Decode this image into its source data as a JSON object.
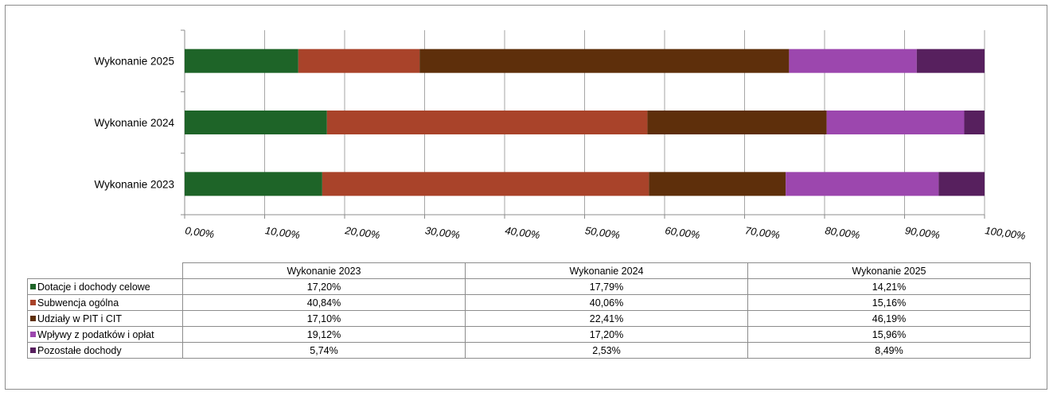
{
  "chart_data": {
    "type": "bar",
    "orientation": "horizontal",
    "stacked": true,
    "categories": [
      "Wykonanie 2025",
      "Wykonanie 2024",
      "Wykonanie 2023"
    ],
    "series": [
      {
        "name": "Dotacje i dochody celowe",
        "color": "#1e6428",
        "values": [
          14.21,
          17.79,
          17.2
        ]
      },
      {
        "name": "Subwencja ogólna",
        "color": "#a9432a",
        "values": [
          15.16,
          40.06,
          40.84
        ]
      },
      {
        "name": "Udziały w PIT i CIT",
        "color": "#5e2f0b",
        "values": [
          46.19,
          22.41,
          17.1
        ]
      },
      {
        "name": "Wpływy z podatków i opłat",
        "color": "#9c47ae",
        "values": [
          15.96,
          17.2,
          19.12
        ]
      },
      {
        "name": "Pozostałe dochody",
        "color": "#57205e",
        "values": [
          8.49,
          2.53,
          5.74
        ]
      }
    ],
    "x_ticks": [
      "0,00%",
      "10,00%",
      "20,00%",
      "30,00%",
      "40,00%",
      "50,00%",
      "60,00%",
      "70,00%",
      "80,00%",
      "90,00%",
      "100,00%"
    ],
    "xlim": [
      0,
      100
    ],
    "grid": "vertical",
    "legend": "data table below chart"
  },
  "table": {
    "headers": [
      "Wykonanie 2023",
      "Wykonanie 2024",
      "Wykonanie 2025"
    ],
    "rows": [
      {
        "label": "Dotacje i dochody celowe",
        "color": "#1e6428",
        "values": [
          "17,20%",
          "17,79%",
          "14,21%"
        ]
      },
      {
        "label": "Subwencja ogólna",
        "color": "#a9432a",
        "values": [
          "40,84%",
          "40,06%",
          "15,16%"
        ]
      },
      {
        "label": "Udziały w PIT i CIT",
        "color": "#5e2f0b",
        "values": [
          "17,10%",
          "22,41%",
          "46,19%"
        ]
      },
      {
        "label": "Wpływy z podatków i opłat",
        "color": "#9c47ae",
        "values": [
          "19,12%",
          "17,20%",
          "15,96%"
        ]
      },
      {
        "label": "Pozostałe dochody",
        "color": "#57205e",
        "values": [
          "5,74%",
          "2,53%",
          "8,49%"
        ]
      }
    ]
  }
}
